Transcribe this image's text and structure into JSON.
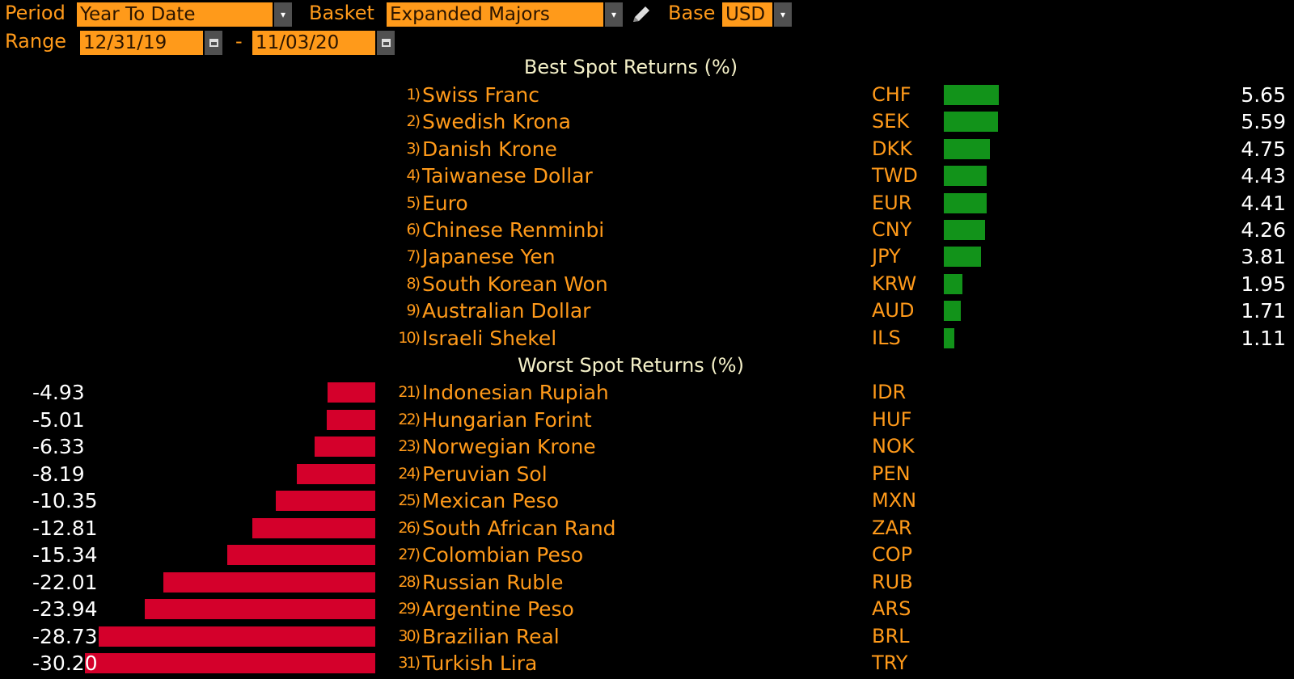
{
  "controls": {
    "period_label": "Period",
    "period_value": "Year To Date",
    "basket_label": "Basket",
    "basket_value": "Expanded Majors",
    "base_label": "Base",
    "base_value": "USD",
    "range_label": "Range",
    "range_start": "12/31/19",
    "range_separator": "-",
    "range_end": "11/03/20",
    "dropdown_glyph": "▾",
    "icons": [
      "chevron-down-icon",
      "pencil-icon",
      "calendar-icon"
    ]
  },
  "best": {
    "title": "Best Spot Returns (%)",
    "rows": [
      {
        "rank": "1)",
        "name": "Swiss Franc",
        "code": "CHF",
        "value": "5.65"
      },
      {
        "rank": "2)",
        "name": "Swedish Krona",
        "code": "SEK",
        "value": "5.59"
      },
      {
        "rank": "3)",
        "name": "Danish Krone",
        "code": "DKK",
        "value": "4.75"
      },
      {
        "rank": "4)",
        "name": "Taiwanese Dollar",
        "code": "TWD",
        "value": "4.43"
      },
      {
        "rank": "5)",
        "name": "Euro",
        "code": "EUR",
        "value": "4.41"
      },
      {
        "rank": "6)",
        "name": "Chinese Renminbi",
        "code": "CNY",
        "value": "4.26"
      },
      {
        "rank": "7)",
        "name": "Japanese Yen",
        "code": "JPY",
        "value": "3.81"
      },
      {
        "rank": "8)",
        "name": "South Korean Won",
        "code": "KRW",
        "value": "1.95"
      },
      {
        "rank": "9)",
        "name": "Australian Dollar",
        "code": "AUD",
        "value": "1.71"
      },
      {
        "rank": "10)",
        "name": "Israeli Shekel",
        "code": "ILS",
        "value": "1.11"
      }
    ]
  },
  "worst": {
    "title": "Worst Spot Returns (%)",
    "rows": [
      {
        "rank": "21)",
        "name": "Indonesian Rupiah",
        "code": "IDR",
        "value": "-4.93"
      },
      {
        "rank": "22)",
        "name": "Hungarian Forint",
        "code": "HUF",
        "value": "-5.01"
      },
      {
        "rank": "23)",
        "name": "Norwegian Krone",
        "code": "NOK",
        "value": "-6.33"
      },
      {
        "rank": "24)",
        "name": "Peruvian Sol",
        "code": "PEN",
        "value": "-8.19"
      },
      {
        "rank": "25)",
        "name": "Mexican Peso",
        "code": "MXN",
        "value": "-10.35"
      },
      {
        "rank": "26)",
        "name": "South African Rand",
        "code": "ZAR",
        "value": "-12.81"
      },
      {
        "rank": "27)",
        "name": "Colombian Peso",
        "code": "COP",
        "value": "-15.34"
      },
      {
        "rank": "28)",
        "name": "Russian Ruble",
        "code": "RUB",
        "value": "-22.01"
      },
      {
        "rank": "29)",
        "name": "Argentine Peso",
        "code": "ARS",
        "value": "-23.94"
      },
      {
        "rank": "30)",
        "name": "Brazilian Real",
        "code": "BRL",
        "value": "-28.73"
      },
      {
        "rank": "31)",
        "name": "Turkish Lira",
        "code": "TRY",
        "value": "-30.20"
      }
    ]
  },
  "colors": {
    "background": "#000000",
    "text_orange": "#ff9a1a",
    "title_cream": "#f4f0c8",
    "positive_bar": "#12931a",
    "negative_bar": "#d4002b"
  }
}
